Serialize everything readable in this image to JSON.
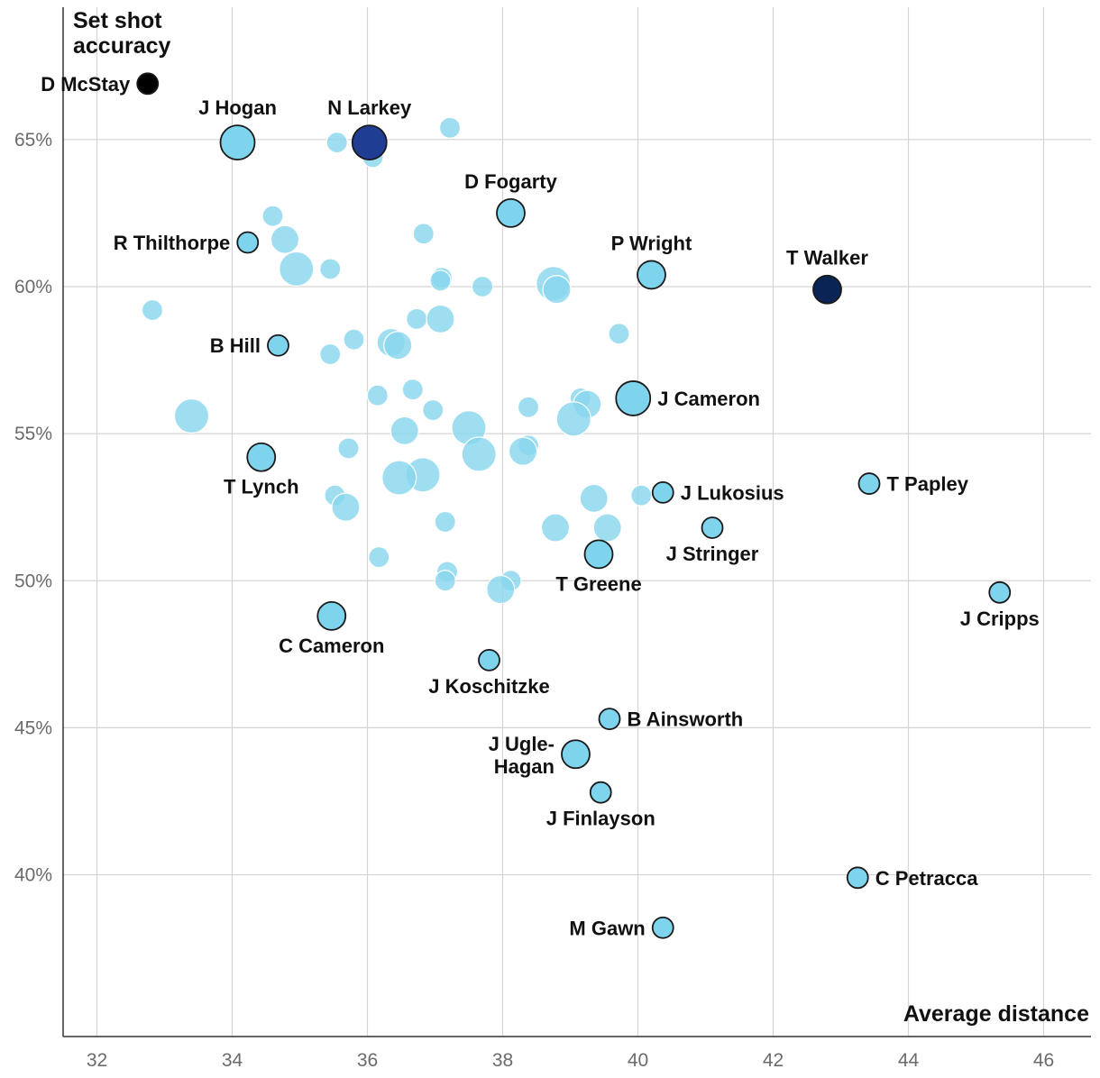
{
  "chart_data": {
    "type": "scatter",
    "title": "",
    "ylabel_lines": [
      "Set shot",
      "accuracy"
    ],
    "xlabel": "Average distance",
    "xlim": [
      31.5,
      46.7
    ],
    "ylim": [
      34.5,
      69.5
    ],
    "x_ticks": [
      32,
      34,
      36,
      38,
      40,
      42,
      44,
      46
    ],
    "x_tick_labels": [
      "32",
      "34",
      "36",
      "38",
      "40",
      "42",
      "44",
      "46"
    ],
    "y_ticks": [
      40,
      45,
      50,
      55,
      60,
      65
    ],
    "y_tick_labels": [
      "40%",
      "45%",
      "50%",
      "55%",
      "60%",
      "65%"
    ],
    "grid": true,
    "colors": {
      "background_point": "#8ad7ee",
      "highlight_point": "#7fd4ed",
      "outline": "#1a1a1a",
      "n_larkey": "#1f3e93",
      "t_walker": "#0b2456",
      "d_mcstay": "#000000",
      "gridline": "#d4d4d4",
      "axis": "#333333"
    },
    "labeled_points": [
      {
        "name": "D McStay",
        "x": 32.75,
        "y": 66.9,
        "size": "small",
        "color": "#000000",
        "label_side": "left"
      },
      {
        "name": "J Hogan",
        "x": 34.08,
        "y": 64.9,
        "size": "large",
        "label_side": "top"
      },
      {
        "name": "N Larkey",
        "x": 36.03,
        "y": 64.9,
        "size": "large",
        "color": "#1f3e93",
        "label_side": "top"
      },
      {
        "name": "D Fogarty",
        "x": 38.12,
        "y": 62.5,
        "size": "medium",
        "label_side": "top"
      },
      {
        "name": "R Thilthorpe",
        "x": 34.23,
        "y": 61.5,
        "size": "small",
        "label_side": "left"
      },
      {
        "name": "P Wright",
        "x": 40.2,
        "y": 60.4,
        "size": "medium",
        "label_side": "top"
      },
      {
        "name": "T Walker",
        "x": 42.8,
        "y": 59.9,
        "size": "medium",
        "color": "#0b2456",
        "label_side": "top"
      },
      {
        "name": "B Hill",
        "x": 34.68,
        "y": 58.0,
        "size": "small",
        "label_side": "left"
      },
      {
        "name": "J Cameron",
        "x": 39.93,
        "y": 56.2,
        "size": "large",
        "label_side": "right"
      },
      {
        "name": "T Lynch",
        "x": 34.43,
        "y": 54.2,
        "size": "medium",
        "label_side": "bottom"
      },
      {
        "name": "T Papley",
        "x": 43.42,
        "y": 53.3,
        "size": "small",
        "label_side": "right"
      },
      {
        "name": "J Lukosius",
        "x": 40.37,
        "y": 53.0,
        "size": "small",
        "label_side": "right"
      },
      {
        "name": "J Stringer",
        "x": 41.1,
        "y": 51.8,
        "size": "small",
        "label_side": "bottom"
      },
      {
        "name": "T Greene",
        "x": 39.42,
        "y": 50.9,
        "size": "medium",
        "label_side": "bottom"
      },
      {
        "name": "J Cripps",
        "x": 45.35,
        "y": 49.6,
        "size": "small",
        "label_side": "bottom"
      },
      {
        "name": "C Cameron",
        "x": 35.47,
        "y": 48.8,
        "size": "medium",
        "label_side": "bottom"
      },
      {
        "name": "J Koschitzke",
        "x": 37.8,
        "y": 47.3,
        "size": "small",
        "label_side": "bottom"
      },
      {
        "name": "B Ainsworth",
        "x": 39.58,
        "y": 45.3,
        "size": "small",
        "label_side": "right"
      },
      {
        "name": "J Ugle-Hagan",
        "x": 39.08,
        "y": 44.1,
        "size": "medium",
        "label_side": "left",
        "label_lines": [
          "J Ugle-",
          "Hagan"
        ]
      },
      {
        "name": "J Finlayson",
        "x": 39.45,
        "y": 42.8,
        "size": "small",
        "label_side": "bottom"
      },
      {
        "name": "C Petracca",
        "x": 43.25,
        "y": 39.9,
        "size": "small",
        "label_side": "right"
      },
      {
        "name": "M Gawn",
        "x": 40.37,
        "y": 38.2,
        "size": "small",
        "label_side": "left"
      }
    ],
    "background_points": [
      {
        "x": 37.22,
        "y": 65.4,
        "size": "small"
      },
      {
        "x": 35.55,
        "y": 64.9,
        "size": "small"
      },
      {
        "x": 36.08,
        "y": 64.4,
        "size": "small"
      },
      {
        "x": 34.6,
        "y": 62.4,
        "size": "small"
      },
      {
        "x": 36.83,
        "y": 61.8,
        "size": "small"
      },
      {
        "x": 34.78,
        "y": 61.6,
        "size": "medium"
      },
      {
        "x": 34.95,
        "y": 60.6,
        "size": "large"
      },
      {
        "x": 35.45,
        "y": 60.6,
        "size": "small"
      },
      {
        "x": 37.1,
        "y": 60.3,
        "size": "small"
      },
      {
        "x": 37.08,
        "y": 60.2,
        "size": "small"
      },
      {
        "x": 37.7,
        "y": 60.0,
        "size": "small"
      },
      {
        "x": 38.75,
        "y": 60.1,
        "size": "large"
      },
      {
        "x": 38.8,
        "y": 59.9,
        "size": "medium"
      },
      {
        "x": 32.82,
        "y": 59.2,
        "size": "small"
      },
      {
        "x": 36.73,
        "y": 58.9,
        "size": "small"
      },
      {
        "x": 37.08,
        "y": 58.9,
        "size": "medium"
      },
      {
        "x": 39.72,
        "y": 58.4,
        "size": "small"
      },
      {
        "x": 35.8,
        "y": 58.2,
        "size": "small"
      },
      {
        "x": 36.35,
        "y": 58.1,
        "size": "medium"
      },
      {
        "x": 36.45,
        "y": 58.0,
        "size": "medium"
      },
      {
        "x": 35.45,
        "y": 57.7,
        "size": "small"
      },
      {
        "x": 36.67,
        "y": 56.5,
        "size": "small"
      },
      {
        "x": 36.15,
        "y": 56.3,
        "size": "small"
      },
      {
        "x": 39.15,
        "y": 56.2,
        "size": "small"
      },
      {
        "x": 39.25,
        "y": 56.0,
        "size": "medium"
      },
      {
        "x": 38.38,
        "y": 55.9,
        "size": "small"
      },
      {
        "x": 36.97,
        "y": 55.8,
        "size": "small"
      },
      {
        "x": 33.4,
        "y": 55.6,
        "size": "large"
      },
      {
        "x": 39.05,
        "y": 55.5,
        "size": "large"
      },
      {
        "x": 37.5,
        "y": 55.2,
        "size": "large"
      },
      {
        "x": 36.55,
        "y": 55.1,
        "size": "medium"
      },
      {
        "x": 38.38,
        "y": 54.6,
        "size": "small"
      },
      {
        "x": 35.72,
        "y": 54.5,
        "size": "small"
      },
      {
        "x": 38.3,
        "y": 54.4,
        "size": "medium"
      },
      {
        "x": 37.65,
        "y": 54.3,
        "size": "large"
      },
      {
        "x": 36.82,
        "y": 53.6,
        "size": "large"
      },
      {
        "x": 36.47,
        "y": 53.5,
        "size": "large"
      },
      {
        "x": 35.52,
        "y": 52.9,
        "size": "small"
      },
      {
        "x": 40.05,
        "y": 52.9,
        "size": "small"
      },
      {
        "x": 39.35,
        "y": 52.8,
        "size": "medium"
      },
      {
        "x": 35.68,
        "y": 52.5,
        "size": "medium"
      },
      {
        "x": 37.15,
        "y": 52.0,
        "size": "small"
      },
      {
        "x": 38.78,
        "y": 51.8,
        "size": "medium"
      },
      {
        "x": 39.55,
        "y": 51.8,
        "size": "medium"
      },
      {
        "x": 36.17,
        "y": 50.8,
        "size": "small"
      },
      {
        "x": 37.18,
        "y": 50.3,
        "size": "small"
      },
      {
        "x": 38.12,
        "y": 50.0,
        "size": "small"
      },
      {
        "x": 37.15,
        "y": 50.0,
        "size": "small"
      },
      {
        "x": 37.97,
        "y": 49.7,
        "size": "medium"
      }
    ]
  }
}
